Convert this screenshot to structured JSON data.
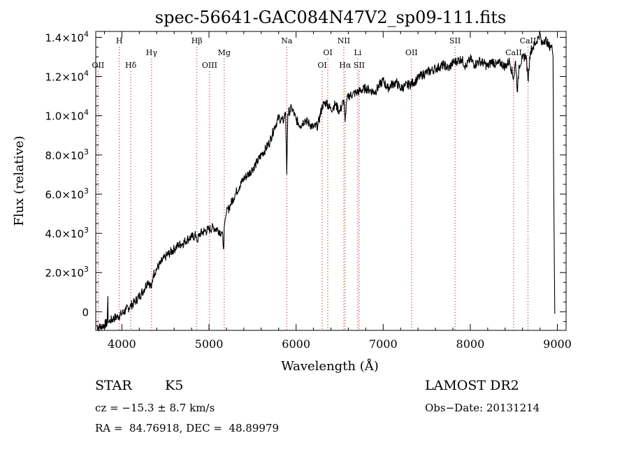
{
  "chart_data": {
    "type": "line",
    "title": "spec-56641-GAC084N47V2_sp09-111.fits",
    "xlabel": "Wavelength (Å)",
    "ylabel": "Flux (relative)",
    "xlim": [
      3700,
      9100
    ],
    "ylim": [
      -950,
      14300
    ],
    "x_ticks": [
      4000,
      5000,
      6000,
      7000,
      8000,
      9000
    ],
    "x_tick_labels": [
      "4000",
      "5000",
      "6000",
      "7000",
      "8000",
      "9000"
    ],
    "y_ticks": [
      0,
      2000,
      4000,
      6000,
      8000,
      10000,
      12000,
      14000
    ],
    "y_tick_labels": [
      {
        "mant": "0",
        "exp": ""
      },
      {
        "mant": "2.0×10",
        "exp": "3"
      },
      {
        "mant": "4.0×10",
        "exp": "3"
      },
      {
        "mant": "6.0×10",
        "exp": "3"
      },
      {
        "mant": "8.0×10",
        "exp": "3"
      },
      {
        "mant": "1.0×10",
        "exp": "4"
      },
      {
        "mant": "1.2×10",
        "exp": "4"
      },
      {
        "mant": "1.4×10",
        "exp": "4"
      }
    ],
    "series": [
      {
        "color": "#000000",
        "x": [
          3710,
          3740,
          3770,
          3800,
          3830,
          3840,
          3842,
          3850,
          3870,
          3900,
          3950,
          4000,
          4050,
          4100,
          4150,
          4200,
          4250,
          4300,
          4340,
          4360,
          4400,
          4450,
          4500,
          4550,
          4600,
          4650,
          4700,
          4750,
          4800,
          4850,
          4861,
          4900,
          4950,
          5000,
          5050,
          5100,
          5150,
          5170,
          5175,
          5185,
          5200,
          5250,
          5300,
          5350,
          5400,
          5450,
          5500,
          5550,
          5600,
          5650,
          5700,
          5750,
          5800,
          5850,
          5880,
          5893,
          5905,
          5950,
          6000,
          6050,
          6100,
          6150,
          6200,
          6250,
          6300,
          6350,
          6400,
          6450,
          6500,
          6550,
          6563,
          6580,
          6600,
          6650,
          6700,
          6750,
          6800,
          6850,
          6900,
          6950,
          7000,
          7050,
          7100,
          7150,
          7200,
          7250,
          7300,
          7350,
          7400,
          7450,
          7500,
          7550,
          7600,
          7650,
          7700,
          7750,
          7800,
          7850,
          7900,
          7950,
          8000,
          8050,
          8100,
          8150,
          8200,
          8250,
          8300,
          8350,
          8400,
          8450,
          8498,
          8520,
          8542,
          8560,
          8600,
          8640,
          8662,
          8690,
          8720,
          8750,
          8780,
          8800,
          8820,
          8850,
          8880,
          8900,
          8920,
          8940,
          8950,
          8960,
          8970
        ],
        "y": [
          -700,
          -800,
          -750,
          -650,
          -600,
          800,
          -550,
          -500,
          -450,
          -350,
          -250,
          -100,
          100,
          300,
          500,
          800,
          1100,
          1600,
          1200,
          1900,
          2200,
          2500,
          2800,
          3000,
          3200,
          3400,
          3500,
          3700,
          3800,
          3900,
          3600,
          4000,
          4100,
          4200,
          4300,
          4200,
          4000,
          3300,
          4300,
          4700,
          5000,
          5500,
          6000,
          6400,
          6800,
          7000,
          7300,
          7600,
          8000,
          8300,
          8700,
          9400,
          9900,
          9700,
          10200,
          7000,
          10100,
          10400,
          9800,
          9500,
          9800,
          9600,
          9400,
          9500,
          10500,
          10700,
          10300,
          10600,
          10200,
          10800,
          9700,
          10700,
          11000,
          11100,
          11200,
          11300,
          11400,
          11300,
          11200,
          11500,
          11800,
          11400,
          11600,
          11700,
          11400,
          11500,
          11600,
          11700,
          11900,
          12100,
          12200,
          12300,
          12400,
          12500,
          12600,
          12400,
          12700,
          12800,
          12900,
          12500,
          12900,
          12600,
          12800,
          12700,
          12500,
          12800,
          12600,
          12700,
          12500,
          12800,
          11900,
          12800,
          11200,
          12600,
          12900,
          13100,
          11800,
          13300,
          13500,
          13700,
          14000,
          14200,
          13600,
          13900,
          13800,
          13500,
          13600,
          13400,
          13000,
          5000,
          -100
        ]
      }
    ],
    "lines": [
      {
        "label": "OII",
        "x": 3727,
        "row": 3
      },
      {
        "label": "H",
        "x": 3970,
        "row": 1
      },
      {
        "label": "Hδ",
        "x": 4102,
        "row": 3
      },
      {
        "label": "Hγ",
        "x": 4341,
        "row": 2
      },
      {
        "label": "Hβ",
        "x": 4861,
        "row": 1
      },
      {
        "label": "OIII",
        "x": 5007,
        "row": 3
      },
      {
        "label": "Mg",
        "x": 5175,
        "row": 2
      },
      {
        "label": "Na",
        "x": 5893,
        "row": 1
      },
      {
        "label": "OI",
        "x": 6300,
        "row": 3
      },
      {
        "label": "OI",
        "x": 6364,
        "row": 2
      },
      {
        "label": "NII",
        "x": 6548,
        "row": 1
      },
      {
        "label": "Hα",
        "x": 6563,
        "row": 3
      },
      {
        "label": "Li",
        "x": 6708,
        "row": 2
      },
      {
        "label": "SII",
        "x": 6724,
        "row": 3
      },
      {
        "label": "OII",
        "x": 7325,
        "row": 2
      },
      {
        "label": "SII",
        "x": 7825,
        "row": 1
      },
      {
        "label": "CaII",
        "x": 8498,
        "row": 2
      },
      {
        "label": "CaII",
        "x": 8662,
        "row": 1
      }
    ]
  },
  "info": {
    "object_class": "STAR",
    "subclass": "K5",
    "survey": "LAMOST DR2",
    "cz": "cz = −15.3 ± 8.7 km/s",
    "obs_date": "Obs−Date: 20131214",
    "coords": "RA =  84.76918, DEC =  48.89979"
  }
}
